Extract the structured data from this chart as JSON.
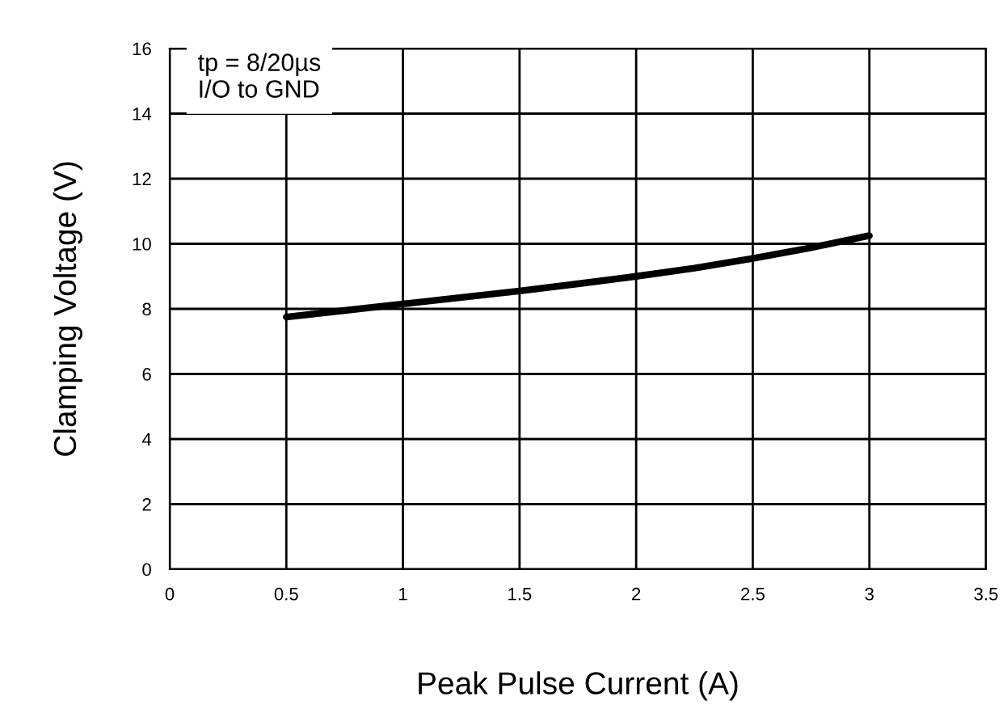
{
  "chart_data": {
    "type": "line",
    "xlabel": "Peak Pulse Current (A)",
    "ylabel": "Clamping Voltage (V)",
    "annotations": [
      "tp = 8/20µs",
      "I/O to GND"
    ],
    "x": [
      0.5,
      0.75,
      1,
      1.25,
      1.5,
      1.75,
      2,
      2.25,
      2.5,
      2.75,
      3
    ],
    "series": [
      {
        "color": "#000000",
        "values": [
          7.75,
          7.95,
          8.15,
          8.35,
          8.55,
          8.77,
          9.0,
          9.25,
          9.55,
          9.88,
          10.25
        ]
      }
    ],
    "xlim": [
      0,
      3.5
    ],
    "xticks": [
      0,
      0.5,
      1,
      1.5,
      2,
      2.5,
      3,
      3.5
    ],
    "ylim": [
      0,
      16
    ],
    "yticks": [
      0,
      2,
      4,
      6,
      8,
      10,
      12,
      14,
      16
    ],
    "grid": true,
    "marker": "none",
    "line_style": "solid"
  }
}
